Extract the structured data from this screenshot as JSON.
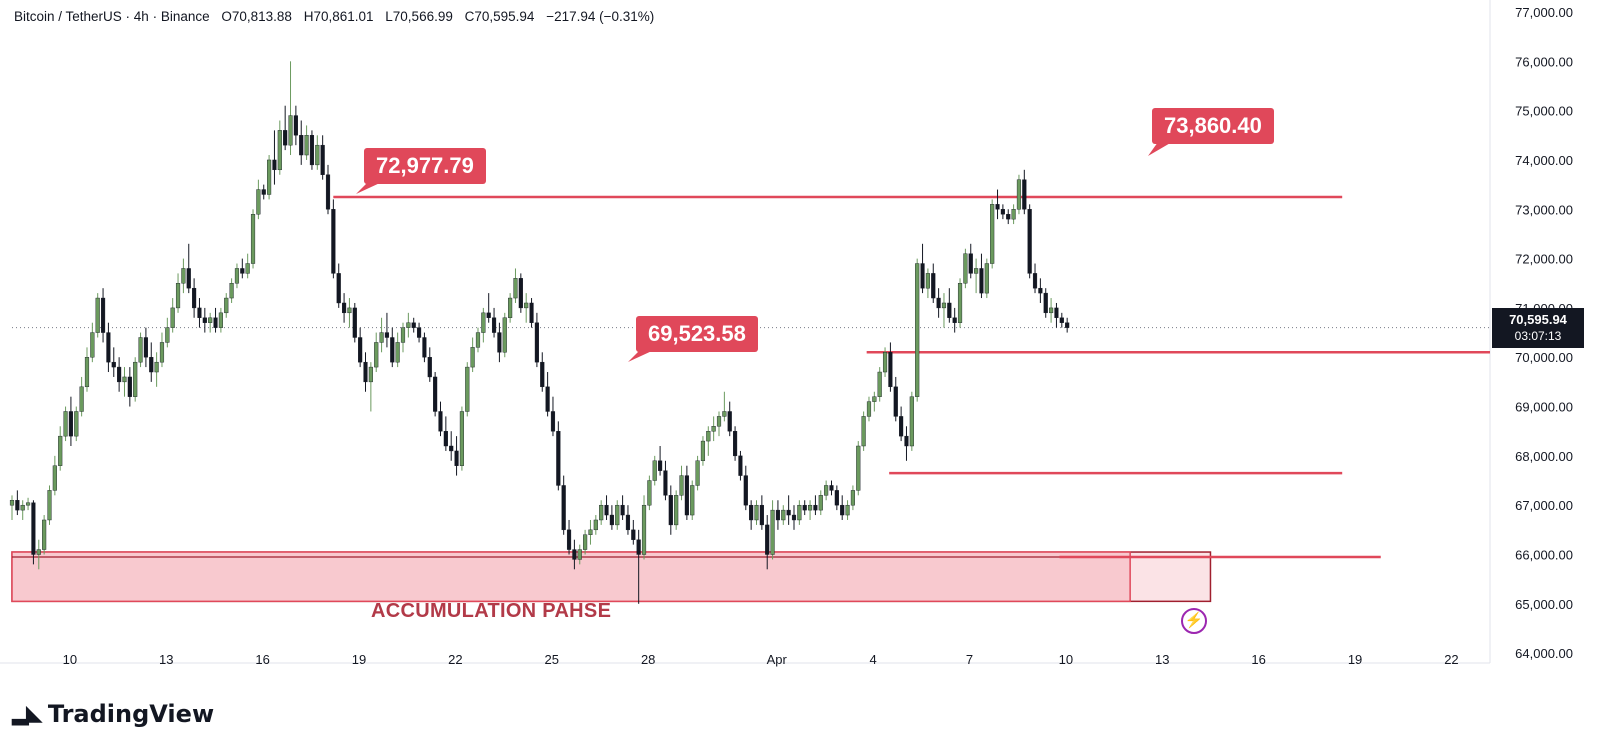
{
  "legend": {
    "symbol": "Bitcoin / TetherUS · 4h · Binance",
    "open": "O70,813.88",
    "high": "H70,861.01",
    "low": "L70,566.99",
    "close": "C70,595.94",
    "change": "−217.94 (−0.31%)"
  },
  "brand": {
    "name": "TradingView"
  },
  "annotations": {
    "left_high": "72,977.79",
    "recent_high": "73,860.40",
    "mid_level": "69,523.58",
    "zone_label": "ACCUMULATION PAHSE"
  },
  "price_badge": {
    "price": "70,595.94",
    "timer": "03:07:13"
  },
  "colors": {
    "up": "#6b9a5e",
    "down": "#131722",
    "levels": "#e0485a",
    "zone_fill": "#f8c9cf",
    "zone_border": "#a01f2e"
  },
  "icons": {
    "bolt": "lightning-icon"
  },
  "chart_data": {
    "type": "candlestick",
    "title": "Bitcoin / TetherUS · 4h · Binance",
    "ylim": [
      63800,
      77000
    ],
    "y_ticks": [
      "77,000.00",
      "76,000.00",
      "75,000.00",
      "74,000.00",
      "73,000.00",
      "72,000.00",
      "71,000.00",
      "70,000.00",
      "69,000.00",
      "68,000.00",
      "67,000.00",
      "66,000.00",
      "65,000.00",
      "64,000.00"
    ],
    "y_tick_values": [
      77000,
      76000,
      75000,
      74000,
      73000,
      72000,
      71000,
      70000,
      69000,
      68000,
      67000,
      66000,
      65000,
      64000
    ],
    "x_ticks": [
      "10",
      "13",
      "16",
      "19",
      "22",
      "25",
      "28",
      "Apr",
      "4",
      "7",
      "10",
      "13",
      "16",
      "19",
      "22"
    ],
    "x_tick_days": [
      10,
      13,
      16,
      19,
      22,
      25,
      28,
      32,
      35,
      38,
      41,
      44,
      47,
      50,
      53
    ],
    "x_range_days": [
      8.2,
      54.2
    ],
    "ohlc_days_start": 8.2,
    "ohlc_step_days": 0.1667,
    "ohlc": [
      [
        67000,
        67200,
        66700,
        67100
      ],
      [
        67100,
        67300,
        66800,
        66900
      ],
      [
        66900,
        67100,
        66700,
        67000
      ],
      [
        67000,
        67150,
        66900,
        67050
      ],
      [
        67050,
        67100,
        65800,
        66000
      ],
      [
        66000,
        66300,
        65700,
        66100
      ],
      [
        66100,
        66800,
        66000,
        66700
      ],
      [
        66700,
        67400,
        66600,
        67300
      ],
      [
        67300,
        68000,
        67200,
        67800
      ],
      [
        67800,
        68600,
        67700,
        68400
      ],
      [
        68400,
        69000,
        68300,
        68900
      ],
      [
        68900,
        69200,
        68200,
        68400
      ],
      [
        68400,
        69000,
        68300,
        68900
      ],
      [
        68900,
        69600,
        68800,
        69400
      ],
      [
        69400,
        70200,
        69300,
        70000
      ],
      [
        70000,
        70700,
        69900,
        70500
      ],
      [
        70500,
        71300,
        70400,
        71200
      ],
      [
        71200,
        71400,
        70300,
        70500
      ],
      [
        70500,
        70700,
        69700,
        69900
      ],
      [
        69900,
        70200,
        69600,
        69800
      ],
      [
        69800,
        70000,
        69300,
        69500
      ],
      [
        69500,
        69800,
        69200,
        69600
      ],
      [
        69600,
        69800,
        69000,
        69200
      ],
      [
        69200,
        70000,
        69100,
        69900
      ],
      [
        69900,
        70500,
        69800,
        70400
      ],
      [
        70400,
        70600,
        69800,
        70000
      ],
      [
        70000,
        70300,
        69500,
        69700
      ],
      [
        69700,
        70100,
        69400,
        69900
      ],
      [
        69900,
        70500,
        69800,
        70300
      ],
      [
        70300,
        70800,
        70200,
        70600
      ],
      [
        70600,
        71200,
        70500,
        71000
      ],
      [
        71000,
        71700,
        70900,
        71500
      ],
      [
        71500,
        72000,
        71300,
        71800
      ],
      [
        71800,
        72300,
        71300,
        71400
      ],
      [
        71400,
        71600,
        70800,
        71000
      ],
      [
        71000,
        71200,
        70600,
        70800
      ],
      [
        70800,
        71000,
        70500,
        70700
      ],
      [
        70700,
        70900,
        70500,
        70800
      ],
      [
        70800,
        71000,
        70500,
        70600
      ],
      [
        70600,
        71000,
        70500,
        70900
      ],
      [
        70900,
        71300,
        70800,
        71200
      ],
      [
        71200,
        71600,
        71100,
        71500
      ],
      [
        71500,
        71900,
        71400,
        71800
      ],
      [
        71800,
        72000,
        71600,
        71700
      ],
      [
        71700,
        72100,
        71600,
        71900
      ],
      [
        71900,
        73000,
        71800,
        72900
      ],
      [
        72900,
        73600,
        72800,
        73400
      ],
      [
        73400,
        73500,
        73200,
        73300
      ],
      [
        73300,
        74100,
        73200,
        74000
      ],
      [
        74000,
        74600,
        73500,
        73800
      ],
      [
        73800,
        74800,
        73700,
        74600
      ],
      [
        74600,
        75100,
        74200,
        74300
      ],
      [
        74300,
        76000,
        74100,
        74900
      ],
      [
        74900,
        75100,
        74300,
        74500
      ],
      [
        74500,
        74800,
        73900,
        74100
      ],
      [
        74100,
        74700,
        74000,
        74500
      ],
      [
        74500,
        74600,
        73800,
        73900
      ],
      [
        73900,
        74500,
        73800,
        74300
      ],
      [
        74300,
        74500,
        73600,
        73700
      ],
      [
        73700,
        73900,
        72900,
        73000
      ],
      [
        73000,
        73200,
        71600,
        71700
      ],
      [
        71700,
        71900,
        71000,
        71100
      ],
      [
        71100,
        71300,
        70700,
        70900
      ],
      [
        70900,
        71200,
        70600,
        71000
      ],
      [
        71000,
        71100,
        70300,
        70400
      ],
      [
        70400,
        70600,
        69800,
        69900
      ],
      [
        69900,
        70100,
        69300,
        69500
      ],
      [
        69500,
        69900,
        68900,
        69800
      ],
      [
        69800,
        70500,
        69700,
        70300
      ],
      [
        70300,
        70800,
        70100,
        70500
      ],
      [
        70500,
        70900,
        70200,
        70400
      ],
      [
        70400,
        70600,
        69800,
        69900
      ],
      [
        69900,
        70500,
        69800,
        70300
      ],
      [
        70300,
        70700,
        70100,
        70600
      ],
      [
        70600,
        70900,
        70400,
        70700
      ],
      [
        70700,
        70800,
        70500,
        70600
      ],
      [
        70600,
        70700,
        70300,
        70400
      ],
      [
        70400,
        70500,
        69900,
        70000
      ],
      [
        70000,
        70200,
        69500,
        69600
      ],
      [
        69600,
        69700,
        68800,
        68900
      ],
      [
        68900,
        69100,
        68400,
        68500
      ],
      [
        68500,
        68800,
        68100,
        68200
      ],
      [
        68200,
        68500,
        67900,
        68100
      ],
      [
        68100,
        68400,
        67600,
        67800
      ],
      [
        67800,
        69000,
        67700,
        68900
      ],
      [
        68900,
        69900,
        68800,
        69800
      ],
      [
        69800,
        70400,
        69700,
        70200
      ],
      [
        70200,
        70600,
        70100,
        70500
      ],
      [
        70500,
        71000,
        70300,
        70900
      ],
      [
        70900,
        71300,
        70700,
        70800
      ],
      [
        70800,
        71000,
        70400,
        70500
      ],
      [
        70500,
        70700,
        69900,
        70100
      ],
      [
        70100,
        70900,
        70000,
        70800
      ],
      [
        70800,
        71300,
        70700,
        71200
      ],
      [
        71200,
        71800,
        71100,
        71600
      ],
      [
        71600,
        71700,
        70900,
        71000
      ],
      [
        71000,
        71300,
        70700,
        71100
      ],
      [
        71100,
        71200,
        70600,
        70700
      ],
      [
        70700,
        70900,
        69800,
        69900
      ],
      [
        69900,
        70100,
        69300,
        69400
      ],
      [
        69400,
        69700,
        68800,
        68900
      ],
      [
        68900,
        69200,
        68400,
        68500
      ],
      [
        68500,
        68700,
        67300,
        67400
      ],
      [
        67400,
        67600,
        66400,
        66500
      ],
      [
        66500,
        66700,
        66000,
        66100
      ],
      [
        66100,
        66300,
        65700,
        65900
      ],
      [
        65900,
        66200,
        65800,
        66100
      ],
      [
        66100,
        66500,
        66000,
        66400
      ],
      [
        66400,
        66700,
        66200,
        66500
      ],
      [
        66500,
        66800,
        66400,
        66700
      ],
      [
        66700,
        67100,
        66600,
        67000
      ],
      [
        67000,
        67200,
        66700,
        66800
      ],
      [
        66800,
        67000,
        66500,
        66600
      ],
      [
        66600,
        67100,
        66500,
        67000
      ],
      [
        67000,
        67200,
        66700,
        66800
      ],
      [
        66800,
        67000,
        66400,
        66500
      ],
      [
        66500,
        66700,
        66200,
        66300
      ],
      [
        66300,
        66500,
        65000,
        66000
      ],
      [
        66000,
        67200,
        65900,
        67000
      ],
      [
        67000,
        67600,
        66900,
        67500
      ],
      [
        67500,
        68000,
        67400,
        67900
      ],
      [
        67900,
        68200,
        67600,
        67700
      ],
      [
        67700,
        67900,
        67100,
        67200
      ],
      [
        67200,
        67400,
        66400,
        66600
      ],
      [
        66600,
        67300,
        66500,
        67200
      ],
      [
        67200,
        67800,
        67100,
        67600
      ],
      [
        67600,
        67800,
        66700,
        66800
      ],
      [
        66800,
        67500,
        66700,
        67400
      ],
      [
        67400,
        68000,
        67300,
        67900
      ],
      [
        67900,
        68400,
        67800,
        68300
      ],
      [
        68300,
        68600,
        68000,
        68500
      ],
      [
        68500,
        68800,
        68300,
        68600
      ],
      [
        68600,
        68900,
        68400,
        68800
      ],
      [
        68800,
        69300,
        68700,
        68900
      ],
      [
        68900,
        69100,
        68400,
        68500
      ],
      [
        68500,
        68600,
        67900,
        68000
      ],
      [
        68000,
        68100,
        67500,
        67600
      ],
      [
        67600,
        67800,
        66900,
        67000
      ],
      [
        67000,
        67100,
        66500,
        66700
      ],
      [
        66700,
        67100,
        66600,
        67000
      ],
      [
        67000,
        67200,
        66500,
        66600
      ],
      [
        66600,
        66800,
        65700,
        66000
      ],
      [
        66000,
        67100,
        65900,
        66900
      ],
      [
        66900,
        67100,
        66500,
        66700
      ],
      [
        66700,
        67000,
        66600,
        66900
      ],
      [
        66900,
        67200,
        66600,
        66800
      ],
      [
        66800,
        67000,
        66500,
        66700
      ],
      [
        66700,
        67100,
        66600,
        67000
      ],
      [
        67000,
        67100,
        66800,
        66900
      ],
      [
        66900,
        67100,
        66700,
        67000
      ],
      [
        67000,
        67200,
        66800,
        66900
      ],
      [
        66900,
        67300,
        66800,
        67200
      ],
      [
        67200,
        67500,
        67100,
        67400
      ],
      [
        67400,
        67500,
        67200,
        67300
      ],
      [
        67300,
        67400,
        66900,
        67000
      ],
      [
        67000,
        67200,
        66700,
        66800
      ],
      [
        66800,
        67100,
        66700,
        67000
      ],
      [
        67000,
        67400,
        66900,
        67300
      ],
      [
        67300,
        68300,
        67200,
        68200
      ],
      [
        68200,
        68900,
        68100,
        68800
      ],
      [
        68800,
        69200,
        68700,
        69100
      ],
      [
        69100,
        69300,
        68900,
        69200
      ],
      [
        69200,
        69800,
        69100,
        69700
      ],
      [
        69700,
        70200,
        69600,
        70100
      ],
      [
        70100,
        70300,
        69300,
        69400
      ],
      [
        69400,
        69600,
        68700,
        68800
      ],
      [
        68800,
        69000,
        68300,
        68400
      ],
      [
        68400,
        68600,
        67900,
        68200
      ],
      [
        68200,
        69300,
        68100,
        69200
      ],
      [
        69200,
        72000,
        69100,
        71900
      ],
      [
        71900,
        72300,
        71300,
        71400
      ],
      [
        71400,
        71800,
        71200,
        71700
      ],
      [
        71700,
        71900,
        71100,
        71200
      ],
      [
        71200,
        71400,
        70800,
        71000
      ],
      [
        71000,
        71300,
        70600,
        71100
      ],
      [
        71100,
        71400,
        70700,
        70800
      ],
      [
        70800,
        71000,
        70500,
        70700
      ],
      [
        70700,
        71600,
        70600,
        71500
      ],
      [
        71500,
        72200,
        71400,
        72100
      ],
      [
        72100,
        72300,
        71600,
        71700
      ],
      [
        71700,
        72000,
        71300,
        71800
      ],
      [
        71800,
        72100,
        71200,
        71300
      ],
      [
        71300,
        72000,
        71200,
        71900
      ],
      [
        71900,
        73200,
        71800,
        73100
      ],
      [
        73100,
        73400,
        72800,
        73000
      ],
      [
        73000,
        73100,
        72800,
        72900
      ],
      [
        72900,
        73000,
        72700,
        72800
      ],
      [
        72800,
        73100,
        72700,
        73000
      ],
      [
        73000,
        73700,
        72900,
        73600
      ],
      [
        73600,
        73800,
        72900,
        73000
      ],
      [
        73000,
        73100,
        71600,
        71700
      ],
      [
        71700,
        71900,
        71300,
        71400
      ],
      [
        71400,
        71600,
        71100,
        71300
      ],
      [
        71300,
        71400,
        70800,
        70900
      ],
      [
        70900,
        71200,
        70700,
        71000
      ],
      [
        71000,
        71100,
        70600,
        70800
      ],
      [
        70800,
        70900,
        70600,
        70700
      ],
      [
        70700,
        70800,
        70500,
        70600
      ]
    ],
    "horizontal_levels": [
      {
        "price": 73250,
        "from_day": 18.2,
        "to_day": 49.6
      },
      {
        "price": 70100,
        "from_day": 34.8,
        "to_day": 54.2
      },
      {
        "price": 67650,
        "from_day": 35.5,
        "to_day": 49.6
      },
      {
        "price": 65950,
        "from_day": 40.8,
        "to_day": 50.8
      }
    ],
    "accumulation_zone": {
      "low": 65050,
      "high": 66050,
      "from_day": 8.2,
      "to_day": 43.0,
      "ext_to_day": 45.5
    }
  }
}
